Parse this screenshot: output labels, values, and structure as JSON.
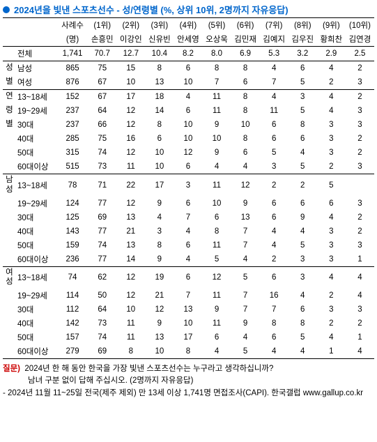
{
  "title": "2024년을 빛낸 스포츠선수 - 성/연령별 (%, 상위 10위, 2명까지 자유응답)",
  "header1": [
    "사례수",
    "(1위)",
    "(2위)",
    "(3위)",
    "(4위)",
    "(5위)",
    "(6위)",
    "(7위)",
    "(8위)",
    "(9위)",
    "(10위)"
  ],
  "header2": [
    "(명)",
    "손흥민",
    "이강인",
    "신유빈",
    "안세영",
    "오상욱",
    "김민재",
    "김예지",
    "김우진",
    "황희찬",
    "김연경"
  ],
  "groupLabels": {
    "g0": "성별",
    "g1": "연령별",
    "g2": "남성",
    "g3": "여성"
  },
  "rows": [
    {
      "vcat": "",
      "label": "전체",
      "n": "1,741",
      "v": [
        "70.7",
        "12.7",
        "10.4",
        "8.2",
        "8.0",
        "6.9",
        "5.3",
        "3.2",
        "2.9",
        "2.5"
      ],
      "cls": "row-total"
    },
    {
      "vcat": "성",
      "label": "남성",
      "n": "865",
      "v": [
        "75",
        "15",
        "8",
        "6",
        "8",
        "8",
        "4",
        "6",
        "4",
        "2"
      ],
      "cls": ""
    },
    {
      "vcat": "별",
      "label": "여성",
      "n": "876",
      "v": [
        "67",
        "10",
        "13",
        "10",
        "7",
        "6",
        "7",
        "5",
        "2",
        "3"
      ],
      "cls": "sep"
    },
    {
      "vcat": "연",
      "label": "13~18세",
      "n": "152",
      "v": [
        "67",
        "17",
        "18",
        "4",
        "11",
        "8",
        "4",
        "3",
        "4",
        "2"
      ],
      "cls": ""
    },
    {
      "vcat": "령",
      "label": "19~29세",
      "n": "237",
      "v": [
        "64",
        "12",
        "14",
        "6",
        "11",
        "8",
        "11",
        "5",
        "4",
        "3"
      ],
      "cls": ""
    },
    {
      "vcat": "별",
      "label": "30대",
      "n": "237",
      "v": [
        "66",
        "12",
        "8",
        "10",
        "9",
        "10",
        "6",
        "8",
        "3",
        "3"
      ],
      "cls": ""
    },
    {
      "vcat": "",
      "label": "40대",
      "n": "285",
      "v": [
        "75",
        "16",
        "6",
        "10",
        "10",
        "8",
        "6",
        "6",
        "3",
        "2"
      ],
      "cls": ""
    },
    {
      "vcat": "",
      "label": "50대",
      "n": "315",
      "v": [
        "74",
        "12",
        "10",
        "12",
        "9",
        "6",
        "5",
        "4",
        "3",
        "2"
      ],
      "cls": ""
    },
    {
      "vcat": "",
      "label": "60대이상",
      "n": "515",
      "v": [
        "73",
        "11",
        "10",
        "6",
        "4",
        "4",
        "3",
        "5",
        "2",
        "3"
      ],
      "cls": "sep"
    },
    {
      "vcat": "남성",
      "label": "13~18세",
      "n": "78",
      "v": [
        "71",
        "22",
        "17",
        "3",
        "11",
        "12",
        "2",
        "2",
        "5",
        ""
      ],
      "cls": ""
    },
    {
      "vcat": "",
      "label": "19~29세",
      "n": "124",
      "v": [
        "77",
        "12",
        "9",
        "6",
        "10",
        "9",
        "6",
        "6",
        "6",
        "3"
      ],
      "cls": ""
    },
    {
      "vcat": "",
      "label": "30대",
      "n": "125",
      "v": [
        "69",
        "13",
        "4",
        "7",
        "6",
        "13",
        "6",
        "9",
        "4",
        "2"
      ],
      "cls": ""
    },
    {
      "vcat": "",
      "label": "40대",
      "n": "143",
      "v": [
        "77",
        "21",
        "3",
        "4",
        "8",
        "7",
        "4",
        "4",
        "3",
        "2"
      ],
      "cls": ""
    },
    {
      "vcat": "",
      "label": "50대",
      "n": "159",
      "v": [
        "74",
        "13",
        "8",
        "6",
        "11",
        "7",
        "4",
        "5",
        "3",
        "3"
      ],
      "cls": ""
    },
    {
      "vcat": "",
      "label": "60대이상",
      "n": "236",
      "v": [
        "77",
        "14",
        "9",
        "4",
        "5",
        "4",
        "2",
        "3",
        "3",
        "1"
      ],
      "cls": "sep"
    },
    {
      "vcat": "여성",
      "label": "13~18세",
      "n": "74",
      "v": [
        "62",
        "12",
        "19",
        "6",
        "12",
        "5",
        "6",
        "3",
        "4",
        "4"
      ],
      "cls": ""
    },
    {
      "vcat": "",
      "label": "19~29세",
      "n": "114",
      "v": [
        "50",
        "12",
        "21",
        "7",
        "11",
        "7",
        "16",
        "4",
        "2",
        "4"
      ],
      "cls": ""
    },
    {
      "vcat": "",
      "label": "30대",
      "n": "112",
      "v": [
        "64",
        "10",
        "12",
        "13",
        "9",
        "7",
        "7",
        "6",
        "3",
        "3"
      ],
      "cls": ""
    },
    {
      "vcat": "",
      "label": "40대",
      "n": "142",
      "v": [
        "73",
        "11",
        "9",
        "10",
        "11",
        "9",
        "8",
        "8",
        "2",
        "2"
      ],
      "cls": ""
    },
    {
      "vcat": "",
      "label": "50대",
      "n": "157",
      "v": [
        "74",
        "11",
        "13",
        "17",
        "6",
        "4",
        "6",
        "5",
        "4",
        "1"
      ],
      "cls": ""
    },
    {
      "vcat": "",
      "label": "60대이상",
      "n": "279",
      "v": [
        "69",
        "8",
        "10",
        "8",
        "4",
        "5",
        "4",
        "4",
        "1",
        "4"
      ],
      "cls": "last"
    }
  ],
  "footer": {
    "qlabel": "질문)",
    "q1": "2024년 한 해 동안 한국을 가장 빛낸 스포츠선수는 누구라고 생각하십니까?",
    "q2": "남녀 구분 없이 답해 주십시오. (2명까지 자유응답)",
    "note": "- 2024년 11월 11~25일 전국(제주 제외) 만 13세 이상 1,741명 면접조사(CAPI). 한국갤럽 www.gallup.co.kr"
  }
}
